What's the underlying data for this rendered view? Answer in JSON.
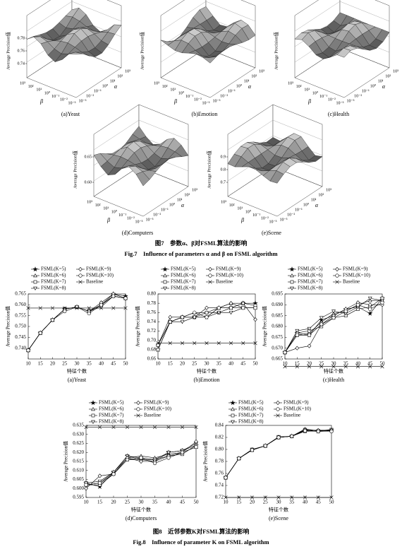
{
  "figure7": {
    "panels": [
      {
        "caption": "(a)Yeast",
        "zlabel": "Average Precision值",
        "zticks": [
          0.78,
          0.76,
          0.74
        ],
        "alpha_label": "α",
        "beta_label": "β",
        "alpha_ticks": [
          "10³",
          "10²",
          "10¹",
          "10⁰",
          "10⁻¹",
          "10⁻²",
          "10⁻³"
        ],
        "beta_ticks": [
          "10³",
          "10²",
          "10¹",
          "10⁰",
          "10⁻¹",
          "10⁻²",
          "10⁻³"
        ]
      },
      {
        "caption": "(b)Emotion",
        "zlabel": "Average Precision值",
        "zticks": [],
        "alpha_label": "α",
        "beta_label": "β",
        "alpha_ticks": [
          "10³",
          "10²",
          "10¹",
          "10⁰",
          "10⁻¹",
          "10⁻²",
          "10⁻³"
        ],
        "beta_ticks": [
          "10³",
          "10²",
          "10¹",
          "10⁰",
          "10⁻¹",
          "10⁻²",
          "10⁻³"
        ]
      },
      {
        "caption": "(c)Health",
        "zlabel": "Average Precision值",
        "zticks": [],
        "alpha_label": "α",
        "beta_label": "β",
        "alpha_ticks": [
          "10³",
          "10²",
          "10¹",
          "10⁰",
          "10⁻¹",
          "10⁻²",
          "10⁻³"
        ],
        "beta_ticks": [
          "10³",
          "10²",
          "10¹",
          "10⁰",
          "10⁻¹",
          "10⁻²",
          "10⁻³"
        ]
      },
      {
        "caption": "(d)Computers",
        "zlabel": "Average Precision值",
        "zticks": [
          0.65,
          {
            "value": 0.6,
            "label": "0.60"
          }
        ],
        "alpha_label": "α",
        "beta_label": "β",
        "alpha_ticks": [
          "10³",
          "10²",
          "10¹",
          "10⁰",
          "10⁻¹",
          "10⁻²",
          "10⁻³"
        ],
        "beta_ticks": [
          "10³",
          "10²",
          "10¹",
          "10⁰",
          "10⁻¹",
          "10⁻²",
          "10⁻³"
        ]
      },
      {
        "caption": "(e)Scene",
        "zlabel": "Average Precision值",
        "zticks": [
          0.9,
          0.8,
          0.7
        ],
        "alpha_label": "α",
        "beta_label": "β",
        "alpha_ticks": [
          "10³",
          "10²",
          "10¹",
          "10⁰",
          "10⁻¹",
          "10⁻²",
          "10⁻³"
        ],
        "beta_ticks": [
          "10³",
          "10²",
          "10¹",
          "10⁰",
          "10⁻¹",
          "10⁻²",
          "10⁻³"
        ]
      }
    ],
    "caption_cn": "图7　参数α、β对FSML算法的影响",
    "caption_en": "Fig.7　Influence of parameters α and β on FSML algorithm"
  },
  "chart_data": [
    {
      "type": "line",
      "caption": "(a)Yeast",
      "ylabel": "Average Precision值",
      "xlabel": "特征个数",
      "x": [
        10,
        15,
        20,
        25,
        30,
        35,
        40,
        45,
        50
      ],
      "xlim": [
        10,
        50
      ],
      "xticks": [
        10,
        15,
        20,
        25,
        30,
        35,
        40,
        45,
        50
      ],
      "ylim": [
        0.735,
        0.765
      ],
      "yticks": [
        {
          "value": 0.74,
          "label": "0.740"
        },
        0.745,
        {
          "value": 0.75,
          "label": "0.750"
        },
        0.755,
        {
          "value": 0.76,
          "label": "0.760"
        },
        0.765
      ],
      "series": [
        {
          "name": "FSML(K=5)",
          "marker": "star",
          "color": "#000000",
          "values": [
            0.739,
            0.747,
            0.753,
            0.758,
            0.759,
            0.757,
            0.76,
            0.765,
            0.764
          ]
        },
        {
          "name": "FSML(K=6)",
          "marker": "triangle",
          "color": "#000000",
          "values": [
            0.739,
            0.747,
            0.753,
            0.758,
            0.759,
            0.757,
            0.76,
            0.764,
            0.763
          ]
        },
        {
          "name": "FSML(K=7)",
          "marker": "square",
          "color": "#000000",
          "values": [
            0.739,
            0.747,
            0.753,
            0.758,
            0.759,
            0.757,
            0.76,
            0.764,
            0.763
          ]
        },
        {
          "name": "FSML(K=8)",
          "marker": "triangle-down",
          "color": "#000000",
          "values": [
            0.739,
            0.747,
            0.753,
            0.758,
            0.759,
            0.757,
            0.759,
            0.764,
            0.763
          ]
        },
        {
          "name": "FSML(K=9)",
          "marker": "diamond",
          "color": "#000000",
          "values": [
            0.739,
            0.747,
            0.753,
            0.758,
            0.759,
            0.757,
            0.761,
            0.765,
            0.763
          ]
        },
        {
          "name": "FSML(K=10)",
          "marker": "circle",
          "color": "#000000",
          "values": [
            0.739,
            0.747,
            0.753,
            0.757,
            0.759,
            0.756,
            0.76,
            0.764,
            0.763
          ]
        },
        {
          "name": "Baseline",
          "marker": "cross",
          "color": "#000000",
          "values": [
            0.7585,
            0.7585,
            0.7585,
            0.7585,
            0.7585,
            0.7585,
            0.7585,
            0.7585,
            0.7585
          ]
        }
      ]
    },
    {
      "type": "line",
      "caption": "(b)Emotion",
      "ylabel": "Average Precision值",
      "xlabel": "特征个数",
      "x": [
        10,
        15,
        20,
        25,
        30,
        35,
        40,
        45,
        50
      ],
      "xlim": [
        10,
        50
      ],
      "xticks": [
        10,
        15,
        20,
        25,
        30,
        35,
        40,
        45,
        50
      ],
      "ylim": [
        0.66,
        0.8
      ],
      "yticks": [
        0.66,
        0.68,
        {
          "value": 0.7,
          "label": "0.70"
        },
        0.72,
        0.74,
        0.76,
        0.78,
        {
          "value": 0.8,
          "label": "0.80"
        }
      ],
      "series": [
        {
          "name": "FSML(K=5)",
          "marker": "star",
          "color": "#000000",
          "values": [
            0.68,
            0.74,
            0.75,
            0.75,
            0.75,
            0.77,
            0.77,
            0.78,
            0.78
          ]
        },
        {
          "name": "FSML(K=6)",
          "marker": "triangle",
          "color": "#000000",
          "values": [
            0.69,
            0.74,
            0.75,
            0.76,
            0.76,
            0.77,
            0.78,
            0.77,
            0.77
          ]
        },
        {
          "name": "FSML(K=7)",
          "marker": "square",
          "color": "#000000",
          "values": [
            0.68,
            0.74,
            0.75,
            0.75,
            0.76,
            0.76,
            0.77,
            0.78,
            0.775
          ]
        },
        {
          "name": "FSML(K=8)",
          "marker": "triangle-down",
          "color": "#000000",
          "values": [
            0.69,
            0.74,
            0.74,
            0.75,
            0.75,
            0.76,
            0.76,
            0.77,
            0.77
          ]
        },
        {
          "name": "FSML(K=9)",
          "marker": "diamond",
          "color": "#000000",
          "values": [
            0.69,
            0.75,
            0.75,
            0.75,
            0.77,
            0.77,
            0.78,
            0.78,
            0.745
          ]
        },
        {
          "name": "FSML(K=10)",
          "marker": "circle",
          "color": "#000000",
          "values": [
            0.69,
            0.74,
            0.75,
            0.76,
            0.75,
            0.77,
            0.77,
            0.77,
            0.77
          ]
        },
        {
          "name": "Baseline",
          "marker": "cross",
          "color": "#000000",
          "values": [
            0.694,
            0.694,
            0.694,
            0.694,
            0.694,
            0.694,
            0.694,
            0.694,
            0.694
          ]
        }
      ]
    },
    {
      "type": "line",
      "caption": "(c)Health",
      "ylabel": "Average Precision值",
      "xlabel": "特征个数",
      "x": [
        10,
        15,
        20,
        25,
        30,
        35,
        40,
        45,
        50
      ],
      "xlim": [
        10,
        50
      ],
      "xticks": [
        10,
        15,
        20,
        25,
        30,
        35,
        40,
        45,
        50
      ],
      "ylim": [
        0.665,
        0.695
      ],
      "yticks": [
        0.665,
        {
          "value": 0.67,
          "label": "0.670"
        },
        0.675,
        {
          "value": 0.68,
          "label": "0.680"
        },
        0.685,
        {
          "value": 0.69,
          "label": "0.690"
        },
        0.695
      ],
      "series": [
        {
          "name": "FSML(K=5)",
          "marker": "star",
          "color": "#000000",
          "values": [
            0.668,
            0.677,
            0.676,
            0.683,
            0.685,
            0.688,
            0.689,
            0.686,
            0.693
          ]
        },
        {
          "name": "FSML(K=6)",
          "marker": "triangle",
          "color": "#000000",
          "values": [
            0.668,
            0.676,
            0.677,
            0.682,
            0.686,
            0.687,
            0.69,
            0.692,
            0.692
          ]
        },
        {
          "name": "FSML(K=7)",
          "marker": "square",
          "color": "#000000",
          "values": [
            0.668,
            0.677,
            0.678,
            0.68,
            0.684,
            0.685,
            0.688,
            0.689,
            0.693
          ]
        },
        {
          "name": "FSML(K=8)",
          "marker": "triangle-down",
          "color": "#000000",
          "values": [
            0.668,
            0.678,
            0.679,
            0.684,
            0.687,
            0.686,
            0.689,
            0.693,
            0.692
          ]
        },
        {
          "name": "FSML(K=9)",
          "marker": "diamond",
          "color": "#000000",
          "values": [
            0.668,
            0.67,
            0.671,
            0.681,
            0.685,
            0.688,
            0.691,
            0.69,
            0.69
          ]
        },
        {
          "name": "FSML(K=10)",
          "marker": "circle",
          "color": "#000000",
          "values": [
            0.668,
            0.676,
            0.676,
            0.681,
            0.684,
            0.687,
            0.69,
            0.688,
            0.691
          ]
        },
        {
          "name": "Baseline",
          "marker": "cross",
          "color": "#000000",
          "values": [
            0.6615,
            0.6615,
            0.6615,
            0.6615,
            0.6615,
            0.6615,
            0.6615,
            0.6615,
            0.6615
          ]
        }
      ]
    },
    {
      "type": "line",
      "caption": "(d)Computers",
      "ylabel": "Average Precision值",
      "xlabel": "特征个数",
      "x": [
        10,
        15,
        20,
        25,
        30,
        35,
        40,
        45,
        50
      ],
      "xlim": [
        10,
        50
      ],
      "xticks": [
        10,
        15,
        20,
        25,
        30,
        35,
        40,
        45,
        50
      ],
      "ylim": [
        0.595,
        0.635
      ],
      "yticks": [
        0.595,
        {
          "value": 0.6,
          "label": "0.600"
        },
        0.605,
        {
          "value": 0.61,
          "label": "0.610"
        },
        0.615,
        {
          "value": 0.62,
          "label": "0.620"
        },
        0.625,
        {
          "value": 0.63,
          "label": "0.630"
        },
        0.635
      ],
      "series": [
        {
          "name": "FSML(K=5)",
          "marker": "star",
          "color": "#000000",
          "values": [
            0.603,
            0.601,
            0.609,
            0.618,
            0.617,
            0.616,
            0.62,
            0.621,
            0.624
          ]
        },
        {
          "name": "FSML(K=6)",
          "marker": "triangle",
          "color": "#000000",
          "values": [
            0.602,
            0.603,
            0.609,
            0.617,
            0.618,
            0.617,
            0.619,
            0.62,
            0.623
          ]
        },
        {
          "name": "FSML(K=7)",
          "marker": "square",
          "color": "#000000",
          "values": [
            0.602,
            0.602,
            0.608,
            0.616,
            0.616,
            0.616,
            0.618,
            0.619,
            0.624
          ]
        },
        {
          "name": "FSML(K=8)",
          "marker": "triangle-down",
          "color": "#000000",
          "values": [
            0.603,
            0.604,
            0.609,
            0.618,
            0.616,
            0.615,
            0.62,
            0.621,
            0.625
          ]
        },
        {
          "name": "FSML(K=9)",
          "marker": "diamond",
          "color": "#000000",
          "values": [
            0.6,
            0.607,
            0.608,
            0.617,
            0.615,
            0.615,
            0.618,
            0.62,
            0.626
          ]
        },
        {
          "name": "FSML(K=10)",
          "marker": "circle",
          "color": "#000000",
          "values": [
            0.602,
            0.603,
            0.608,
            0.616,
            0.617,
            0.614,
            0.617,
            0.62,
            0.623
          ]
        },
        {
          "name": "Baseline",
          "marker": "cross",
          "color": "#000000",
          "values": [
            0.634,
            0.634,
            0.634,
            0.634,
            0.634,
            0.634,
            0.634,
            0.634,
            0.634
          ]
        }
      ]
    },
    {
      "type": "line",
      "caption": "(e)Scene",
      "ylabel": "Average Precision值",
      "xlabel": "特征个数",
      "x": [
        10,
        15,
        20,
        25,
        30,
        35,
        40,
        45,
        50
      ],
      "xlim": [
        10,
        50
      ],
      "xticks": [
        10,
        15,
        20,
        25,
        30,
        35,
        40,
        45,
        50
      ],
      "ylim": [
        0.72,
        0.84
      ],
      "yticks": [
        0.72,
        0.74,
        0.76,
        0.78,
        {
          "value": 0.8,
          "label": "0.80"
        },
        0.82,
        0.84
      ],
      "series": [
        {
          "name": "FSML(K=5)",
          "marker": "star",
          "color": "#000000",
          "values": [
            0.753,
            0.785,
            0.799,
            0.806,
            0.82,
            0.822,
            0.832,
            0.83,
            0.832
          ]
        },
        {
          "name": "FSML(K=6)",
          "marker": "triangle",
          "color": "#000000",
          "values": [
            0.753,
            0.785,
            0.8,
            0.806,
            0.82,
            0.822,
            0.834,
            0.831,
            0.833
          ]
        },
        {
          "name": "FSML(K=7)",
          "marker": "square",
          "color": "#000000",
          "values": [
            0.753,
            0.785,
            0.799,
            0.806,
            0.82,
            0.822,
            0.83,
            0.831,
            0.831
          ]
        },
        {
          "name": "FSML(K=8)",
          "marker": "triangle-down",
          "color": "#000000",
          "values": [
            0.753,
            0.785,
            0.8,
            0.806,
            0.821,
            0.822,
            0.833,
            0.83,
            0.833
          ]
        },
        {
          "name": "FSML(K=9)",
          "marker": "diamond",
          "color": "#000000",
          "values": [
            0.753,
            0.785,
            0.799,
            0.806,
            0.82,
            0.822,
            0.832,
            0.832,
            0.832
          ]
        },
        {
          "name": "FSML(K=10)",
          "marker": "circle",
          "color": "#000000",
          "values": [
            0.753,
            0.785,
            0.799,
            0.806,
            0.82,
            0.822,
            0.831,
            0.83,
            0.83
          ]
        },
        {
          "name": "Baseline",
          "marker": "cross",
          "color": "#000000",
          "values": [
            0.72,
            0.72,
            0.72,
            0.72,
            0.72,
            0.72,
            0.72,
            0.72,
            0.72
          ]
        }
      ]
    }
  ],
  "figure8": {
    "caption_cn": "图8　近邻参数K对FSML算法的影响",
    "caption_en": "Fig.8　Influence of parameter K on FSML algorithm"
  }
}
